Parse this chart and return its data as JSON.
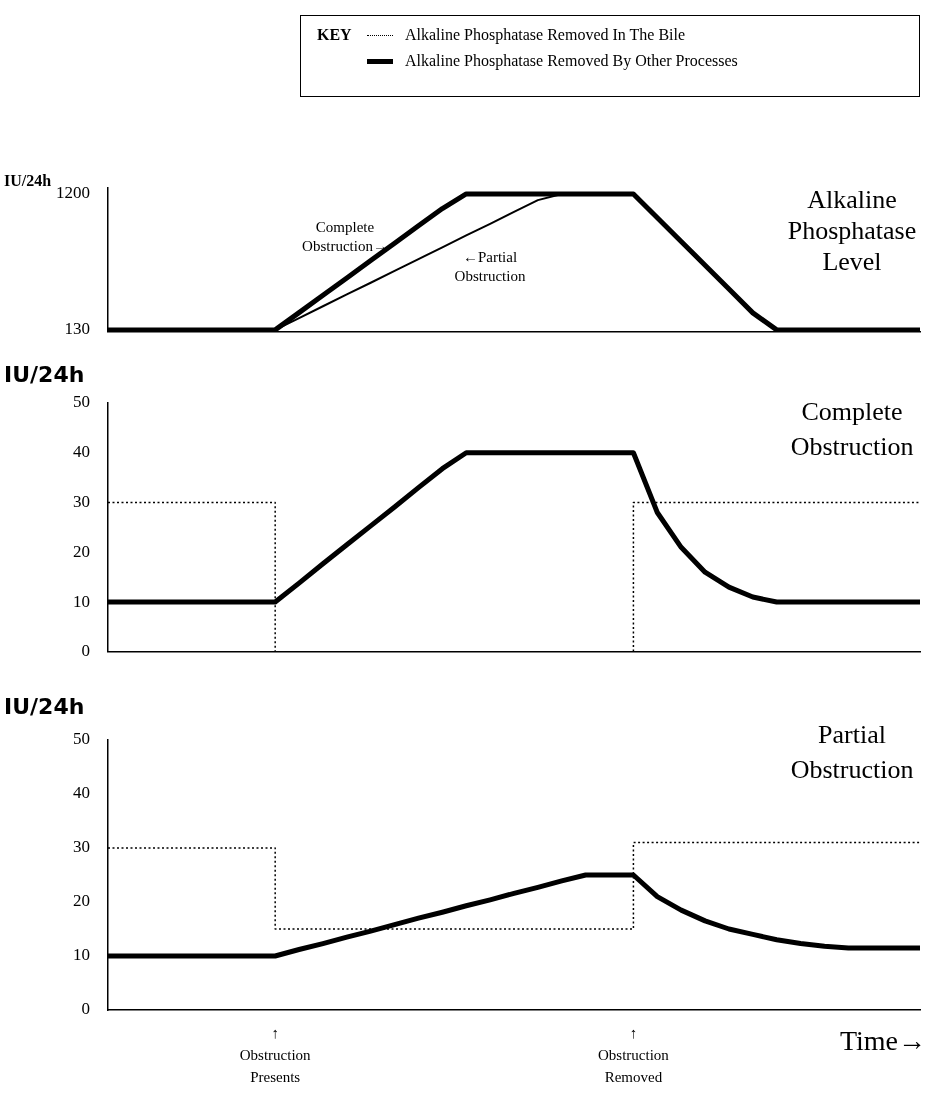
{
  "chart_data": [
    {
      "type": "line",
      "title": "Alkaline Phosphatase Level",
      "ylabel": "IU/24h",
      "categories": [
        null,
        null,
        null,
        null,
        null,
        null,
        null,
        null,
        null,
        null,
        null,
        null,
        null,
        null,
        null,
        null,
        null,
        null,
        null,
        null,
        null,
        null,
        null,
        null,
        null,
        null,
        null,
        null,
        null,
        null,
        null,
        null,
        null,
        null,
        null
      ],
      "series": [
        {
          "color": "#000000",
          "line_style": "solid",
          "values": [
            130,
            130,
            130,
            130,
            130,
            130,
            130,
            130,
            266,
            403,
            539,
            676,
            812,
            949,
            1085,
            1200,
            1200,
            1200,
            1200,
            1200,
            1200,
            1200,
            1200,
            1013,
            826,
            639,
            452,
            264,
            130,
            130,
            130,
            130,
            130,
            130,
            130
          ]
        },
        {
          "color": "#000000",
          "line_style": "solid",
          "values": [
            null,
            null,
            null,
            null,
            null,
            null,
            null,
            130,
            223,
            316,
            409,
            501,
            594,
            687,
            780,
            873,
            965,
            1058,
            1151,
            1200,
            null,
            null,
            null,
            null,
            null,
            null,
            null,
            null,
            null,
            null,
            null,
            null,
            null,
            null,
            null
          ]
        }
      ],
      "ylim": [
        115,
        1245
      ],
      "yticks": [
        130,
        1200
      ],
      "grid": false,
      "tick_labels": "y",
      "marker": "none",
      "annotations": [
        "Complete Obstruction→",
        "←Partial Obstruction"
      ]
    },
    {
      "type": "line",
      "title": "Complete Obstruction",
      "ylabel": "IU/24h",
      "legend_title": "KEY",
      "legend": "top",
      "categories": [
        null,
        null,
        null,
        null,
        null,
        null,
        null,
        null,
        null,
        null,
        null,
        null,
        null,
        null,
        null,
        null,
        null,
        null,
        null,
        null,
        null,
        null,
        null,
        null,
        null,
        null,
        null,
        null,
        null,
        null,
        null,
        null,
        null,
        null,
        null
      ],
      "series": [
        {
          "name": "Alkaline Phosphatase Removed In The Bile",
          "type": "step",
          "color": "#000000",
          "line_style": "dotted",
          "values": [
            30,
            30,
            30,
            30,
            30,
            30,
            30,
            0,
            0,
            0,
            0,
            0,
            0,
            0,
            0,
            0,
            0,
            0,
            0,
            0,
            0,
            0,
            30,
            30,
            30,
            30,
            30,
            30,
            30,
            30,
            30,
            30,
            30,
            30,
            30
          ]
        },
        {
          "name": "Alkaline Phosphatase Removed By Other Processes",
          "color": "#000000",
          "line_style": "solid",
          "values": [
            10,
            10,
            10,
            10,
            10,
            10,
            10,
            10,
            13.8,
            17.7,
            21.5,
            25.3,
            29.1,
            33,
            36.8,
            40,
            40,
            40,
            40,
            40,
            40,
            40,
            40,
            28,
            21,
            16,
            13,
            11,
            10,
            10,
            10,
            10,
            10,
            10,
            10
          ]
        }
      ],
      "ylim": [
        0,
        50
      ],
      "yticks": [
        0,
        10,
        20,
        30,
        40,
        50
      ],
      "grid": false,
      "tick_labels": "y",
      "marker": "none"
    },
    {
      "type": "line",
      "title": "Partial Obstruction",
      "ylabel": "IU/24h",
      "xlabel": "Time→",
      "categories": [
        null,
        null,
        null,
        null,
        null,
        null,
        null,
        null,
        null,
        null,
        null,
        null,
        null,
        null,
        null,
        null,
        null,
        null,
        null,
        null,
        null,
        null,
        null,
        null,
        null,
        null,
        null,
        null,
        null,
        null,
        null,
        null,
        null,
        null,
        null
      ],
      "series": [
        {
          "type": "step",
          "color": "#000000",
          "line_style": "dotted",
          "values": [
            30,
            30,
            30,
            30,
            30,
            30,
            30,
            15,
            15,
            15,
            15,
            15,
            15,
            15,
            15,
            15,
            15,
            15,
            15,
            15,
            15,
            15,
            31,
            31,
            31,
            31,
            31,
            31,
            31,
            31,
            31,
            31,
            31,
            31,
            31
          ]
        },
        {
          "color": "#000000",
          "line_style": "solid",
          "values": [
            10,
            10,
            10,
            10,
            10,
            10,
            10,
            10,
            11.2,
            12.3,
            13.5,
            14.6,
            15.8,
            17,
            18.1,
            19.3,
            20.4,
            21.6,
            22.7,
            23.9,
            25,
            25,
            25,
            21,
            18.5,
            16.5,
            15,
            14,
            13,
            12.3,
            11.8,
            11.5,
            11.5,
            11.5,
            11.5
          ]
        }
      ],
      "ylim": [
        0,
        50
      ],
      "yticks": [
        0,
        10,
        20,
        30,
        40,
        50
      ],
      "grid": false,
      "tick_labels": "y",
      "marker": "none",
      "annotations": [
        "↑ Obstruction Presents",
        "↑ Obstruction Removed"
      ]
    }
  ]
}
